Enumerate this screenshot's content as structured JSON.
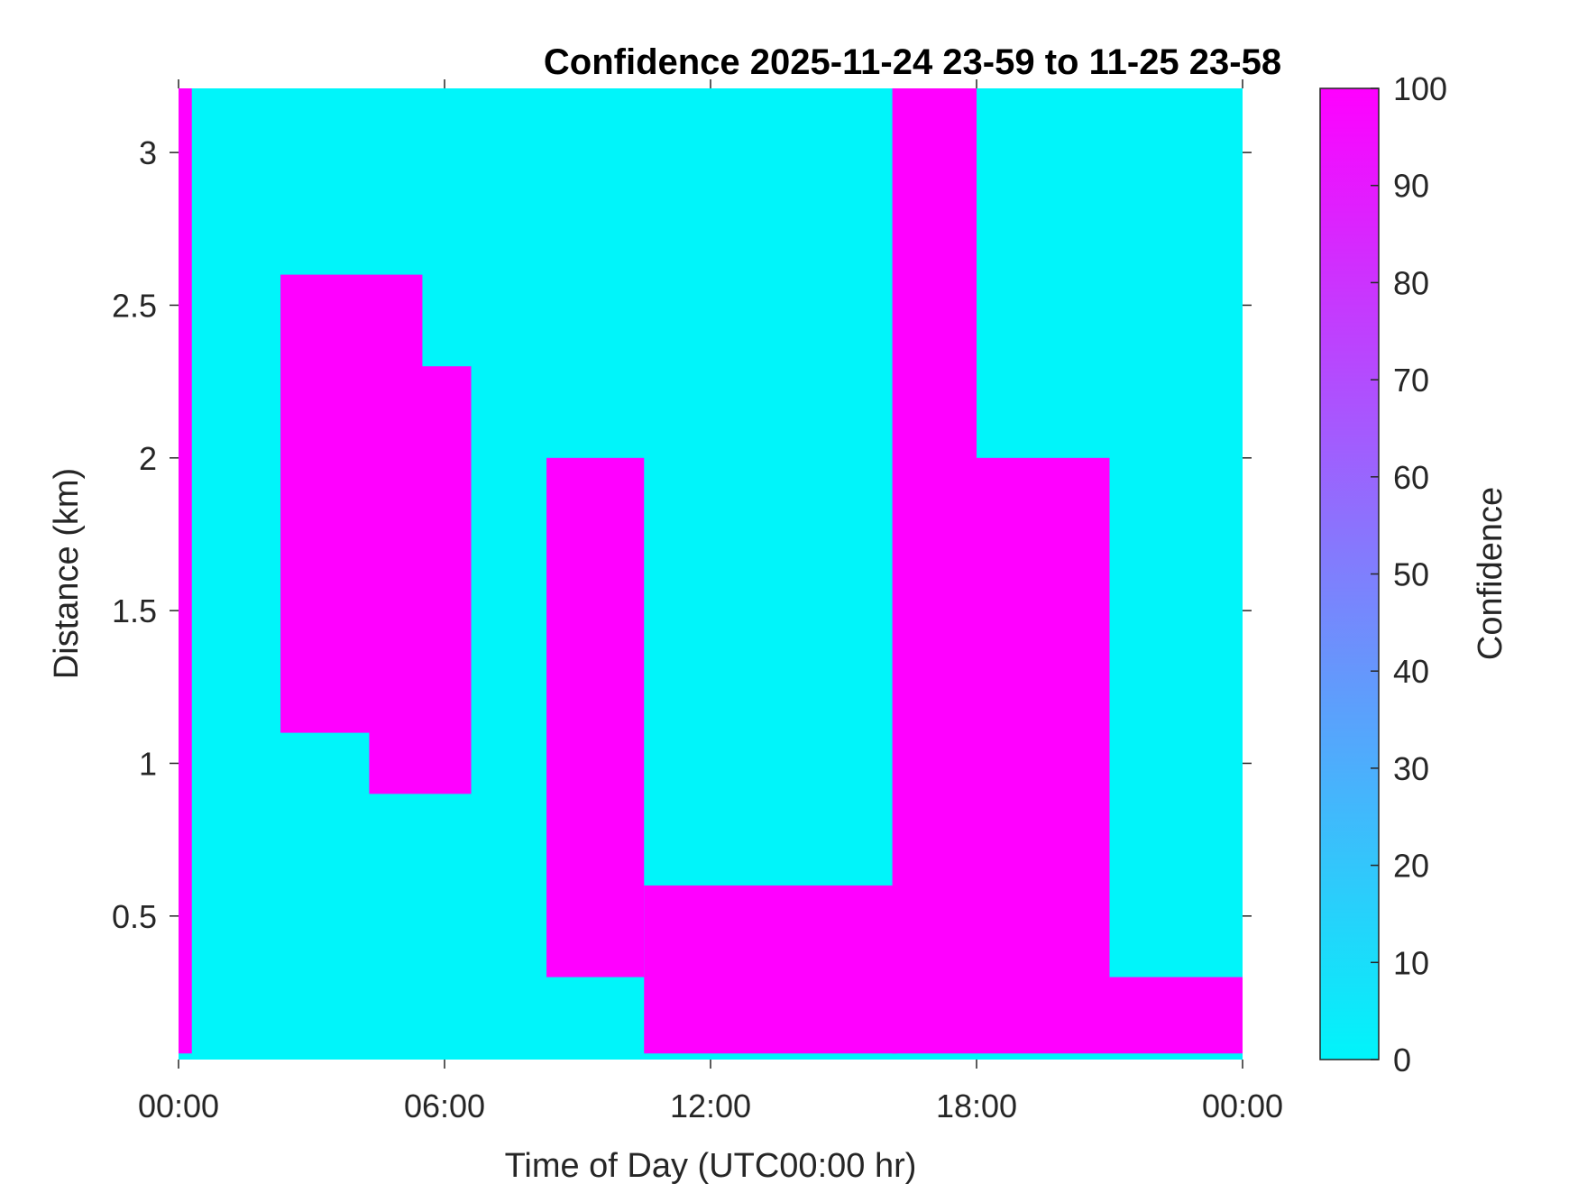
{
  "chart_data": {
    "type": "heatmap",
    "title": "Confidence 2025-11-24 23-59 to 11-25 23-58",
    "xlabel": "Time of Day (UTC00:00 hr)",
    "ylabel": "Distance (km)",
    "x_ticks": [
      "00:00",
      "06:00",
      "12:00",
      "18:00",
      "00:00"
    ],
    "xlim_hours": [
      0,
      24
    ],
    "y_ticks": [
      "0.5",
      "1",
      "1.5",
      "2",
      "2.5",
      "3"
    ],
    "ylim_km": [
      0.03,
      3.21
    ],
    "colorbar": {
      "label": "Confidence",
      "range": [
        0,
        100
      ],
      "ticks": [
        "0",
        "10",
        "20",
        "30",
        "40",
        "50",
        "60",
        "70",
        "80",
        "90",
        "100"
      ],
      "color_low": "#00F5FA",
      "color_high": "#FF00FF"
    },
    "regions_high_confidence": [
      {
        "hours": [
          0.0,
          0.3
        ],
        "km": [
          0.05,
          3.21
        ]
      },
      {
        "hours": [
          2.3,
          5.5
        ],
        "km": [
          1.1,
          2.6
        ]
      },
      {
        "hours": [
          4.3,
          6.6
        ],
        "km": [
          0.9,
          2.3
        ]
      },
      {
        "hours": [
          8.3,
          10.5
        ],
        "km": [
          0.3,
          2.0
        ]
      },
      {
        "hours": [
          10.5,
          16.2
        ],
        "km": [
          0.05,
          0.6
        ]
      },
      {
        "hours": [
          16.1,
          18.0
        ],
        "km": [
          0.05,
          3.21
        ]
      },
      {
        "hours": [
          18.0,
          21.0
        ],
        "km": [
          0.05,
          2.0
        ]
      },
      {
        "hours": [
          21.0,
          24.0
        ],
        "km": [
          0.05,
          0.3
        ]
      }
    ]
  }
}
